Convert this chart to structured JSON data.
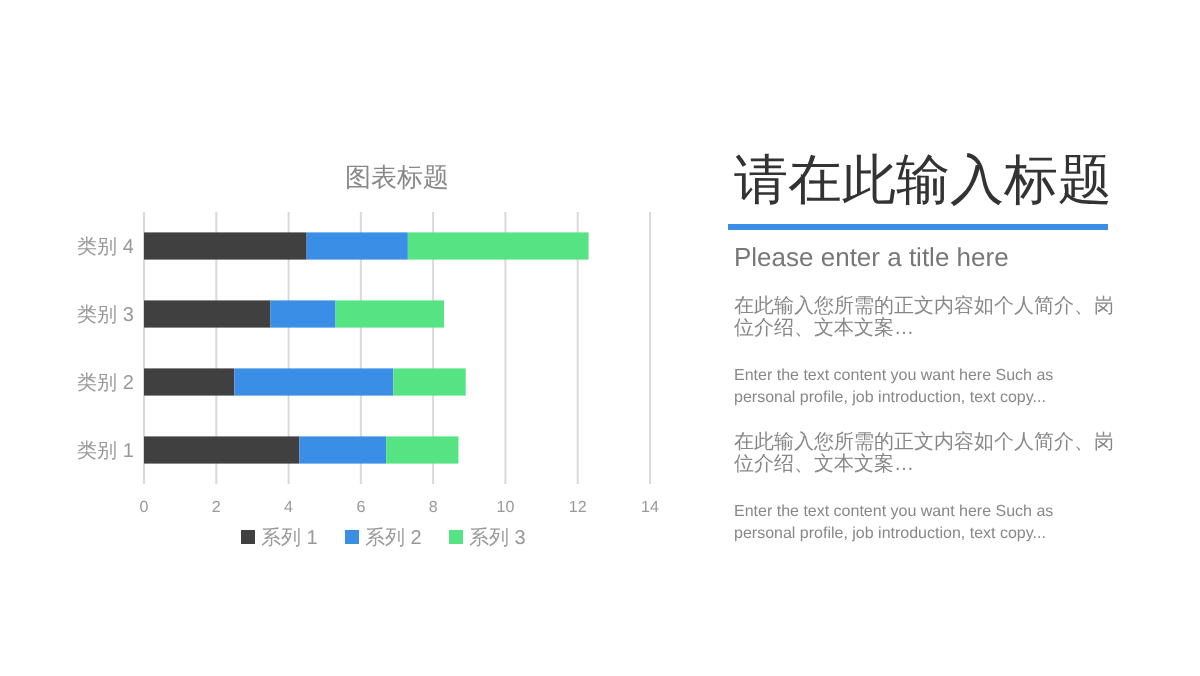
{
  "chart_data": [
    {
      "type": "bar",
      "orientation": "horizontal",
      "stacked": true,
      "title": "图表标题",
      "categories": [
        "类别 4",
        "类别 3",
        "类别 2",
        "类别 1"
      ],
      "series": [
        {
          "name": "系列 1",
          "color": "#404040",
          "values": [
            4.5,
            3.5,
            2.5,
            4.3
          ]
        },
        {
          "name": "系列 2",
          "color": "#3a8ee6",
          "values": [
            2.8,
            1.8,
            4.4,
            2.4
          ]
        },
        {
          "name": "系列 3",
          "color": "#55e383",
          "values": [
            5.0,
            3.0,
            2.0,
            2.0
          ]
        }
      ],
      "xlim": [
        0,
        14
      ],
      "xticks": [
        0,
        2,
        4,
        6,
        8,
        10,
        12,
        14
      ],
      "grid": "x",
      "legend": "bottom"
    },
    {
      "type": "other",
      "title": "请在此输入标题",
      "subtitle": "Please enter a title here",
      "annotations": [
        "在此输入您所需的正文内容如个人简介、岗位介绍、文本文案…",
        "Enter the text content you want here Such as personal profile, job introduction, text copy...",
        "在此输入您所需的正文内容如个人简介、岗位介绍、文本文案…",
        "Enter the text content you want here Such as personal profile, job introduction, text copy..."
      ]
    }
  ]
}
